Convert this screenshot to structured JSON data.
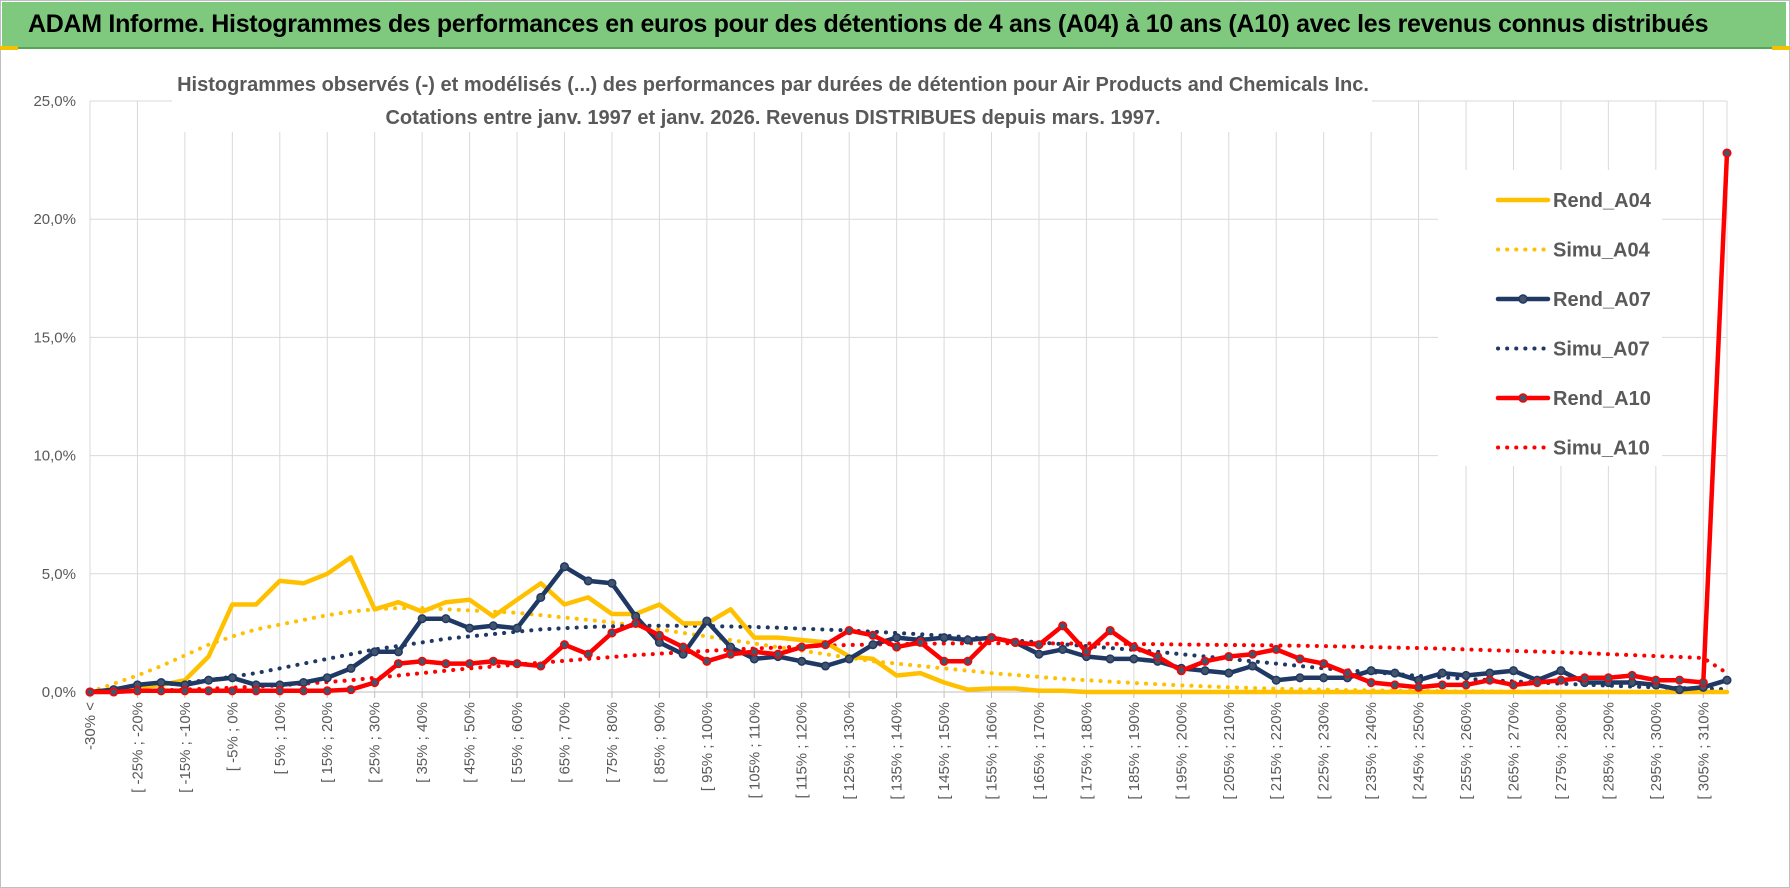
{
  "banner": {
    "title": "ADAM Informe. Histogrammes des performances en euros pour des détentions de 4 ans (A04) à 10 ans (A10) avec les revenus connus distribués"
  },
  "chart_data": {
    "type": "line",
    "title_line1": "Histogrammes observés (-) et modélisés (...) des performances par durées de détention pour Air Products and Chemicals Inc.",
    "title_line2": "Cotations entre janv. 1997 et janv. 2026. Revenus DISTRIBUES depuis mars. 1997.",
    "ylim": [
      0,
      25
    ],
    "yticks": [
      "0,0%",
      "5,0%",
      "10,0%",
      "15,0%",
      "20,0%",
      "25,0%"
    ],
    "ytick_values": [
      0,
      5,
      10,
      15,
      20,
      25
    ],
    "xtick_labels": [
      "-30% <",
      "[ -25% ; -20%",
      "[ -15% ; -10%",
      "[ -5% ; 0%",
      "[ 5% ; 10%",
      "[ 15% ; 20%",
      "[ 25% ; 30%",
      "[ 35% ; 40%",
      "[ 45% ; 50%",
      "[ 55% ; 60%",
      "[ 65% ; 70%",
      "[ 75% ; 80%",
      "[ 85% ; 90%",
      "[ 95% ; 100%",
      "[ 105% ; 110%",
      "[ 115% ; 120%",
      "[ 125% ; 130%",
      "[ 135% ; 140%",
      "[ 145% ; 150%",
      "[ 155% ; 160%",
      "[ 165% ; 170%",
      "[ 175% ; 180%",
      "[ 185% ; 190%",
      "[ 195% ; 200%",
      "[ 205% ; 210%",
      "[ 215% ; 220%",
      "[ 225% ; 230%",
      "[ 235% ; 240%",
      "[ 245% ; 250%",
      "[ 255% ; 260%",
      "[ 265% ; 270%",
      "[ 275% ; 280%",
      "[ 285% ; 290%",
      "[ 295% ; 300%",
      "[ 305% ; 310%"
    ],
    "n_points": 70,
    "series": [
      {
        "name": "Rend_A04",
        "style": "solid",
        "markers": false,
        "color": "#ffc000",
        "values": [
          0.0,
          0.1,
          0.2,
          0.3,
          0.5,
          1.5,
          3.7,
          3.7,
          4.7,
          4.6,
          5.0,
          5.7,
          3.5,
          3.8,
          3.4,
          3.8,
          3.9,
          3.2,
          3.9,
          4.6,
          3.7,
          4.0,
          3.3,
          3.3,
          3.7,
          2.9,
          2.9,
          3.5,
          2.3,
          2.3,
          2.2,
          2.1,
          1.5,
          1.4,
          0.7,
          0.8,
          0.4,
          0.1,
          0.15,
          0.15,
          0.05,
          0.05,
          0.0,
          0.0,
          0.0,
          0.0,
          0.0,
          0.0,
          0.0,
          0.0,
          0.0,
          0.0,
          0.0,
          0.0,
          0.0,
          0.0,
          0.0,
          0.0,
          0.0,
          0.0,
          0.0,
          0.0,
          0.0,
          0.0,
          0.0,
          0.0,
          0.0,
          0.0,
          0.0,
          0.0
        ]
      },
      {
        "name": "Simu_A04",
        "style": "dotted",
        "markers": false,
        "color": "#ffc000",
        "values": [
          0.0,
          0.35,
          0.7,
          1.1,
          1.55,
          2.0,
          2.35,
          2.65,
          2.85,
          3.05,
          3.25,
          3.4,
          3.5,
          3.55,
          3.55,
          3.5,
          3.45,
          3.4,
          3.35,
          3.25,
          3.15,
          3.05,
          2.95,
          2.8,
          2.65,
          2.5,
          2.35,
          2.2,
          2.05,
          1.9,
          1.75,
          1.6,
          1.45,
          1.3,
          1.2,
          1.1,
          1.0,
          0.9,
          0.8,
          0.72,
          0.64,
          0.56,
          0.5,
          0.44,
          0.38,
          0.33,
          0.28,
          0.24,
          0.2,
          0.17,
          0.14,
          0.12,
          0.1,
          0.08,
          0.07,
          0.06,
          0.05,
          0.04,
          0.03,
          0.03,
          0.02,
          0.02,
          0.01,
          0.01,
          0.01,
          0.01,
          0.0,
          0.0,
          0.0,
          0.0
        ]
      },
      {
        "name": "Rend_A07",
        "style": "solid",
        "markers": true,
        "color": "#1f3864",
        "values": [
          0.0,
          0.1,
          0.3,
          0.4,
          0.3,
          0.5,
          0.6,
          0.3,
          0.3,
          0.4,
          0.6,
          1.0,
          1.7,
          1.7,
          3.1,
          3.1,
          2.7,
          2.8,
          2.7,
          4.0,
          5.3,
          4.7,
          4.6,
          3.2,
          2.1,
          1.6,
          3.0,
          1.9,
          1.4,
          1.5,
          1.3,
          1.1,
          1.4,
          2.0,
          2.3,
          2.2,
          2.3,
          2.2,
          2.3,
          2.1,
          1.6,
          1.8,
          1.5,
          1.4,
          1.4,
          1.3,
          1.0,
          0.9,
          0.8,
          1.1,
          0.5,
          0.6,
          0.6,
          0.6,
          0.9,
          0.8,
          0.5,
          0.8,
          0.7,
          0.8,
          0.9,
          0.5,
          0.9,
          0.4,
          0.4,
          0.4,
          0.3,
          0.1,
          0.2,
          0.5
        ]
      },
      {
        "name": "Simu_A07",
        "style": "dotted",
        "markers": false,
        "color": "#1f3864",
        "values": [
          0.0,
          0.1,
          0.2,
          0.3,
          0.4,
          0.5,
          0.65,
          0.8,
          1.0,
          1.2,
          1.4,
          1.6,
          1.8,
          1.95,
          2.1,
          2.25,
          2.35,
          2.45,
          2.55,
          2.65,
          2.7,
          2.75,
          2.78,
          2.8,
          2.8,
          2.8,
          2.79,
          2.77,
          2.75,
          2.72,
          2.68,
          2.64,
          2.6,
          2.55,
          2.5,
          2.44,
          2.38,
          2.32,
          2.25,
          2.18,
          2.1,
          2.02,
          1.94,
          1.86,
          1.78,
          1.7,
          1.6,
          1.5,
          1.4,
          1.3,
          1.2,
          1.1,
          1.0,
          0.92,
          0.84,
          0.76,
          0.68,
          0.62,
          0.56,
          0.5,
          0.45,
          0.4,
          0.35,
          0.31,
          0.27,
          0.23,
          0.2,
          0.17,
          0.14,
          0.12
        ]
      },
      {
        "name": "Rend_A10",
        "style": "solid",
        "markers": true,
        "color": "#ff0000",
        "values": [
          0.0,
          0.0,
          0.05,
          0.05,
          0.05,
          0.05,
          0.05,
          0.05,
          0.05,
          0.05,
          0.05,
          0.1,
          0.4,
          1.2,
          1.3,
          1.2,
          1.2,
          1.3,
          1.2,
          1.1,
          2.0,
          1.6,
          2.5,
          2.9,
          2.4,
          1.9,
          1.3,
          1.6,
          1.7,
          1.6,
          1.9,
          2.0,
          2.6,
          2.4,
          1.9,
          2.1,
          1.3,
          1.3,
          2.3,
          2.1,
          2.0,
          2.8,
          1.7,
          2.6,
          1.9,
          1.5,
          0.9,
          1.3,
          1.5,
          1.6,
          1.8,
          1.4,
          1.2,
          0.8,
          0.4,
          0.3,
          0.2,
          0.3,
          0.3,
          0.5,
          0.3,
          0.4,
          0.5,
          0.6,
          0.6,
          0.7,
          0.5,
          0.5,
          0.4,
          22.8
        ]
      },
      {
        "name": "Simu_A10",
        "style": "dotted",
        "markers": false,
        "color": "#ff0000",
        "values": [
          0.0,
          0.02,
          0.04,
          0.07,
          0.1,
          0.14,
          0.18,
          0.23,
          0.28,
          0.35,
          0.42,
          0.5,
          0.6,
          0.7,
          0.8,
          0.9,
          1.0,
          1.08,
          1.16,
          1.24,
          1.32,
          1.4,
          1.48,
          1.56,
          1.62,
          1.68,
          1.74,
          1.79,
          1.84,
          1.88,
          1.92,
          1.96,
          1.99,
          2.01,
          2.03,
          2.04,
          2.05,
          2.06,
          2.06,
          2.06,
          2.06,
          2.05,
          2.05,
          2.04,
          2.03,
          2.02,
          2.01,
          2.0,
          1.99,
          1.98,
          1.97,
          1.96,
          1.94,
          1.92,
          1.9,
          1.88,
          1.86,
          1.83,
          1.8,
          1.77,
          1.74,
          1.71,
          1.68,
          1.64,
          1.6,
          1.56,
          1.52,
          1.48,
          1.44,
          0.8
        ]
      }
    ]
  }
}
